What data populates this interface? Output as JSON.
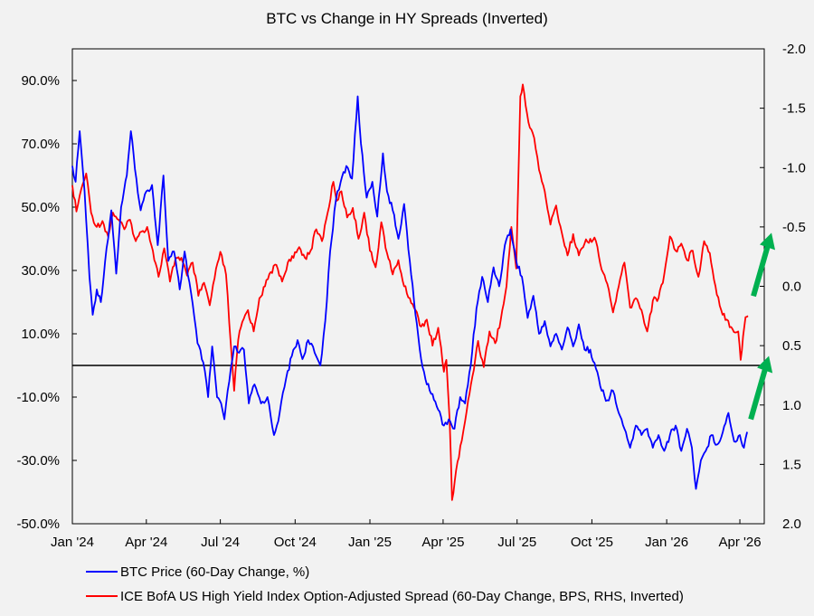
{
  "chart_data": {
    "type": "line",
    "title": "BTC vs Change in HY Spreads (Inverted)",
    "x_ticks": [
      "Jan '24",
      "Apr '24",
      "Jul '24",
      "Oct '24",
      "Jan '25",
      "Apr '25",
      "Jul '25",
      "Oct '25",
      "Jan '26",
      "Apr '26"
    ],
    "x_range": [
      "2024-01-01",
      "2026-05-01"
    ],
    "y_left": {
      "range": [
        -0.5,
        1.0
      ],
      "ticks": [
        "90.0%",
        "70.0%",
        "50.0%",
        "30.0%",
        "10.0%",
        "-10.0%",
        "-30.0%",
        "-50.0%"
      ],
      "tick_values": [
        0.9,
        0.7,
        0.5,
        0.3,
        0.1,
        -0.1,
        -0.3,
        -0.5
      ]
    },
    "y_right": {
      "range": [
        -2.0,
        2.0
      ],
      "inverted": true,
      "ticks": [
        "-2.0",
        "-1.5",
        "-1.0",
        "-0.5",
        "0.0",
        "0.5",
        "1.0",
        "1.5",
        "2.0"
      ],
      "tick_values": [
        -2.0,
        -1.5,
        -1.0,
        -0.5,
        0.0,
        0.5,
        1.0,
        1.5,
        2.0
      ]
    },
    "reference_line": {
      "axis": "left",
      "value": 0.0
    },
    "series": [
      {
        "name": "BTC Price (60-Day Change, %)",
        "axis": "left",
        "color": "#0000ff",
        "points": [
          [
            "2024-01-01",
            0.63
          ],
          [
            "2024-01-05",
            0.58
          ],
          [
            "2024-01-10",
            0.74
          ],
          [
            "2024-01-16",
            0.55
          ],
          [
            "2024-01-22",
            0.28
          ],
          [
            "2024-01-26",
            0.16
          ],
          [
            "2024-01-31",
            0.24
          ],
          [
            "2024-02-05",
            0.2
          ],
          [
            "2024-02-12",
            0.37
          ],
          [
            "2024-02-18",
            0.49
          ],
          [
            "2024-02-24",
            0.29
          ],
          [
            "2024-03-01",
            0.5
          ],
          [
            "2024-03-08",
            0.6
          ],
          [
            "2024-03-13",
            0.74
          ],
          [
            "2024-03-18",
            0.62
          ],
          [
            "2024-03-25",
            0.49
          ],
          [
            "2024-04-01",
            0.55
          ],
          [
            "2024-04-08",
            0.57
          ],
          [
            "2024-04-15",
            0.38
          ],
          [
            "2024-04-22",
            0.6
          ],
          [
            "2024-04-28",
            0.33
          ],
          [
            "2024-05-05",
            0.36
          ],
          [
            "2024-05-12",
            0.24
          ],
          [
            "2024-05-18",
            0.36
          ],
          [
            "2024-05-26",
            0.23
          ],
          [
            "2024-06-03",
            0.07
          ],
          [
            "2024-06-10",
            0.01
          ],
          [
            "2024-06-16",
            -0.1
          ],
          [
            "2024-06-21",
            0.06
          ],
          [
            "2024-06-27",
            -0.1
          ],
          [
            "2024-07-02",
            -0.12
          ],
          [
            "2024-07-06",
            -0.17
          ],
          [
            "2024-07-12",
            -0.05
          ],
          [
            "2024-07-18",
            0.06
          ],
          [
            "2024-07-24",
            0.04
          ],
          [
            "2024-07-30",
            0.05
          ],
          [
            "2024-08-05",
            -0.12
          ],
          [
            "2024-08-12",
            -0.06
          ],
          [
            "2024-08-20",
            -0.12
          ],
          [
            "2024-08-28",
            -0.1
          ],
          [
            "2024-09-05",
            -0.22
          ],
          [
            "2024-09-12",
            -0.15
          ],
          [
            "2024-09-20",
            -0.04
          ],
          [
            "2024-09-27",
            0.03
          ],
          [
            "2024-10-04",
            0.08
          ],
          [
            "2024-10-10",
            0.02
          ],
          [
            "2024-10-17",
            0.08
          ],
          [
            "2024-10-25",
            0.04
          ],
          [
            "2024-11-01",
            0.0
          ],
          [
            "2024-11-07",
            0.14
          ],
          [
            "2024-11-13",
            0.36
          ],
          [
            "2024-11-20",
            0.52
          ],
          [
            "2024-11-26",
            0.58
          ],
          [
            "2024-12-03",
            0.63
          ],
          [
            "2024-12-10",
            0.59
          ],
          [
            "2024-12-17",
            0.85
          ],
          [
            "2024-12-21",
            0.7
          ],
          [
            "2024-12-28",
            0.53
          ],
          [
            "2025-01-04",
            0.58
          ],
          [
            "2025-01-10",
            0.47
          ],
          [
            "2025-01-17",
            0.67
          ],
          [
            "2025-01-22",
            0.55
          ],
          [
            "2025-01-29",
            0.49
          ],
          [
            "2025-02-05",
            0.4
          ],
          [
            "2025-02-12",
            0.51
          ],
          [
            "2025-02-19",
            0.33
          ],
          [
            "2025-02-26",
            0.16
          ],
          [
            "2025-03-05",
            0.02
          ],
          [
            "2025-03-12",
            -0.06
          ],
          [
            "2025-03-19",
            -0.09
          ],
          [
            "2025-03-26",
            -0.14
          ],
          [
            "2025-04-02",
            -0.19
          ],
          [
            "2025-04-08",
            -0.17
          ],
          [
            "2025-04-15",
            -0.2
          ],
          [
            "2025-04-22",
            -0.1
          ],
          [
            "2025-04-28",
            -0.12
          ],
          [
            "2025-05-05",
            0.0
          ],
          [
            "2025-05-12",
            0.18
          ],
          [
            "2025-05-19",
            0.28
          ],
          [
            "2025-05-26",
            0.2
          ],
          [
            "2025-06-02",
            0.31
          ],
          [
            "2025-06-09",
            0.25
          ],
          [
            "2025-06-16",
            0.38
          ],
          [
            "2025-06-23",
            0.43
          ],
          [
            "2025-06-30",
            0.33
          ],
          [
            "2025-07-07",
            0.28
          ],
          [
            "2025-07-14",
            0.15
          ],
          [
            "2025-07-21",
            0.22
          ],
          [
            "2025-07-28",
            0.1
          ],
          [
            "2025-08-04",
            0.14
          ],
          [
            "2025-08-11",
            0.06
          ],
          [
            "2025-08-18",
            0.1
          ],
          [
            "2025-08-25",
            0.05
          ],
          [
            "2025-09-01",
            0.12
          ],
          [
            "2025-09-08",
            0.06
          ],
          [
            "2025-09-15",
            0.13
          ],
          [
            "2025-09-22",
            0.05
          ],
          [
            "2025-09-29",
            0.05
          ],
          [
            "2025-10-06",
            -0.01
          ],
          [
            "2025-10-13",
            -0.08
          ],
          [
            "2025-10-20",
            -0.11
          ],
          [
            "2025-10-27",
            -0.08
          ],
          [
            "2025-11-03",
            -0.15
          ],
          [
            "2025-11-10",
            -0.2
          ],
          [
            "2025-11-17",
            -0.26
          ],
          [
            "2025-11-24",
            -0.19
          ],
          [
            "2025-12-01",
            -0.22
          ],
          [
            "2025-12-08",
            -0.2
          ],
          [
            "2025-12-15",
            -0.26
          ],
          [
            "2025-12-22",
            -0.22
          ],
          [
            "2025-12-29",
            -0.27
          ],
          [
            "2026-01-05",
            -0.22
          ],
          [
            "2026-01-12",
            -0.19
          ],
          [
            "2026-01-19",
            -0.27
          ],
          [
            "2026-01-26",
            -0.2
          ],
          [
            "2026-02-01",
            -0.26
          ],
          [
            "2026-02-06",
            -0.39
          ],
          [
            "2026-02-12",
            -0.3
          ],
          [
            "2026-02-18",
            -0.27
          ],
          [
            "2026-02-25",
            -0.22
          ],
          [
            "2026-03-04",
            -0.25
          ],
          [
            "2026-03-11",
            -0.21
          ],
          [
            "2026-03-18",
            -0.15
          ],
          [
            "2026-03-25",
            -0.24
          ],
          [
            "2026-04-01",
            -0.22
          ],
          [
            "2026-04-06",
            -0.26
          ],
          [
            "2026-04-10",
            -0.21
          ]
        ]
      },
      {
        "name": "ICE BofA US High Yield Index Option-Adjusted Spread (60-Day Change, BPS, RHS, Inverted)",
        "axis": "right",
        "color": "#ff0000",
        "points": [
          [
            "2024-01-01",
            -0.85
          ],
          [
            "2024-01-06",
            -0.63
          ],
          [
            "2024-01-12",
            -0.82
          ],
          [
            "2024-01-18",
            -0.95
          ],
          [
            "2024-01-24",
            -0.62
          ],
          [
            "2024-01-31",
            -0.5
          ],
          [
            "2024-02-07",
            -0.55
          ],
          [
            "2024-02-14",
            -0.42
          ],
          [
            "2024-02-20",
            -0.62
          ],
          [
            "2024-02-27",
            -0.56
          ],
          [
            "2024-03-05",
            -0.48
          ],
          [
            "2024-03-12",
            -0.56
          ],
          [
            "2024-03-19",
            -0.38
          ],
          [
            "2024-03-26",
            -0.46
          ],
          [
            "2024-04-02",
            -0.5
          ],
          [
            "2024-04-09",
            -0.3
          ],
          [
            "2024-04-16",
            -0.08
          ],
          [
            "2024-04-23",
            -0.32
          ],
          [
            "2024-04-30",
            -0.04
          ],
          [
            "2024-05-07",
            -0.24
          ],
          [
            "2024-05-14",
            -0.24
          ],
          [
            "2024-05-21",
            -0.09
          ],
          [
            "2024-05-28",
            -0.2
          ],
          [
            "2024-06-04",
            0.08
          ],
          [
            "2024-06-11",
            -0.03
          ],
          [
            "2024-06-18",
            0.16
          ],
          [
            "2024-06-24",
            -0.07
          ],
          [
            "2024-07-01",
            -0.29
          ],
          [
            "2024-07-08",
            -0.1
          ],
          [
            "2024-07-14",
            0.5
          ],
          [
            "2024-07-18",
            0.88
          ],
          [
            "2024-07-23",
            0.45
          ],
          [
            "2024-07-28",
            0.3
          ],
          [
            "2024-08-04",
            0.2
          ],
          [
            "2024-08-11",
            0.38
          ],
          [
            "2024-08-18",
            0.1
          ],
          [
            "2024-08-25",
            0.0
          ],
          [
            "2024-09-01",
            -0.12
          ],
          [
            "2024-09-08",
            -0.18
          ],
          [
            "2024-09-15",
            -0.04
          ],
          [
            "2024-09-22",
            -0.2
          ],
          [
            "2024-09-29",
            -0.24
          ],
          [
            "2024-10-06",
            -0.33
          ],
          [
            "2024-10-13",
            -0.24
          ],
          [
            "2024-10-20",
            -0.3
          ],
          [
            "2024-10-27",
            -0.48
          ],
          [
            "2024-11-03",
            -0.38
          ],
          [
            "2024-11-10",
            -0.62
          ],
          [
            "2024-11-17",
            -0.88
          ],
          [
            "2024-11-21",
            -0.72
          ],
          [
            "2024-11-27",
            -0.8
          ],
          [
            "2024-12-04",
            -0.58
          ],
          [
            "2024-12-11",
            -0.66
          ],
          [
            "2024-12-18",
            -0.4
          ],
          [
            "2024-12-25",
            -0.62
          ],
          [
            "2025-01-01",
            -0.3
          ],
          [
            "2025-01-08",
            -0.16
          ],
          [
            "2025-01-15",
            -0.54
          ],
          [
            "2025-01-22",
            -0.28
          ],
          [
            "2025-01-29",
            -0.1
          ],
          [
            "2025-02-05",
            -0.22
          ],
          [
            "2025-02-12",
            0.0
          ],
          [
            "2025-02-19",
            0.1
          ],
          [
            "2025-02-26",
            0.2
          ],
          [
            "2025-03-05",
            0.34
          ],
          [
            "2025-03-12",
            0.28
          ],
          [
            "2025-03-19",
            0.5
          ],
          [
            "2025-03-26",
            0.35
          ],
          [
            "2025-04-02",
            0.72
          ],
          [
            "2025-04-05",
            0.62
          ],
          [
            "2025-04-09",
            1.12
          ],
          [
            "2025-04-12",
            1.8
          ],
          [
            "2025-04-17",
            1.55
          ],
          [
            "2025-04-24",
            1.3
          ],
          [
            "2025-04-30",
            1.05
          ],
          [
            "2025-05-07",
            0.76
          ],
          [
            "2025-05-14",
            0.46
          ],
          [
            "2025-05-21",
            0.68
          ],
          [
            "2025-05-28",
            0.38
          ],
          [
            "2025-06-04",
            0.48
          ],
          [
            "2025-06-11",
            0.28
          ],
          [
            "2025-06-18",
            0.0
          ],
          [
            "2025-06-24",
            -0.5
          ],
          [
            "2025-06-30",
            -0.15
          ],
          [
            "2025-07-05",
            -1.6
          ],
          [
            "2025-07-08",
            -1.7
          ],
          [
            "2025-07-15",
            -1.38
          ],
          [
            "2025-07-22",
            -1.25
          ],
          [
            "2025-07-28",
            -0.98
          ],
          [
            "2025-08-04",
            -0.8
          ],
          [
            "2025-08-11",
            -0.52
          ],
          [
            "2025-08-18",
            -0.68
          ],
          [
            "2025-08-25",
            -0.45
          ],
          [
            "2025-09-01",
            -0.26
          ],
          [
            "2025-09-08",
            -0.44
          ],
          [
            "2025-09-15",
            -0.26
          ],
          [
            "2025-09-22",
            -0.36
          ],
          [
            "2025-09-29",
            -0.4
          ],
          [
            "2025-10-06",
            -0.38
          ],
          [
            "2025-10-13",
            -0.14
          ],
          [
            "2025-10-20",
            -0.02
          ],
          [
            "2025-10-27",
            0.22
          ],
          [
            "2025-11-03",
            0.0
          ],
          [
            "2025-11-10",
            -0.2
          ],
          [
            "2025-11-17",
            0.18
          ],
          [
            "2025-11-24",
            0.1
          ],
          [
            "2025-12-01",
            0.2
          ],
          [
            "2025-12-08",
            0.38
          ],
          [
            "2025-12-15",
            0.12
          ],
          [
            "2025-12-22",
            0.1
          ],
          [
            "2025-12-29",
            -0.1
          ],
          [
            "2026-01-05",
            -0.42
          ],
          [
            "2026-01-12",
            -0.3
          ],
          [
            "2026-01-19",
            -0.36
          ],
          [
            "2026-01-26",
            -0.22
          ],
          [
            "2026-02-02",
            -0.3
          ],
          [
            "2026-02-09",
            -0.08
          ],
          [
            "2026-02-16",
            -0.38
          ],
          [
            "2026-02-23",
            -0.28
          ],
          [
            "2026-03-02",
            0.0
          ],
          [
            "2026-03-09",
            0.2
          ],
          [
            "2026-03-16",
            0.28
          ],
          [
            "2026-03-23",
            0.36
          ],
          [
            "2026-03-30",
            0.38
          ],
          [
            "2026-04-02",
            0.62
          ],
          [
            "2026-04-05",
            0.42
          ],
          [
            "2026-04-08",
            0.26
          ],
          [
            "2026-04-11",
            0.25
          ]
        ]
      }
    ],
    "annotations": [
      {
        "type": "arrow",
        "color": "#00b050",
        "direction": "up",
        "alongside": "red series end"
      },
      {
        "type": "arrow",
        "color": "#00b050",
        "direction": "up",
        "alongside": "blue series end"
      }
    ],
    "legend_position": "bottom",
    "grid": false
  }
}
